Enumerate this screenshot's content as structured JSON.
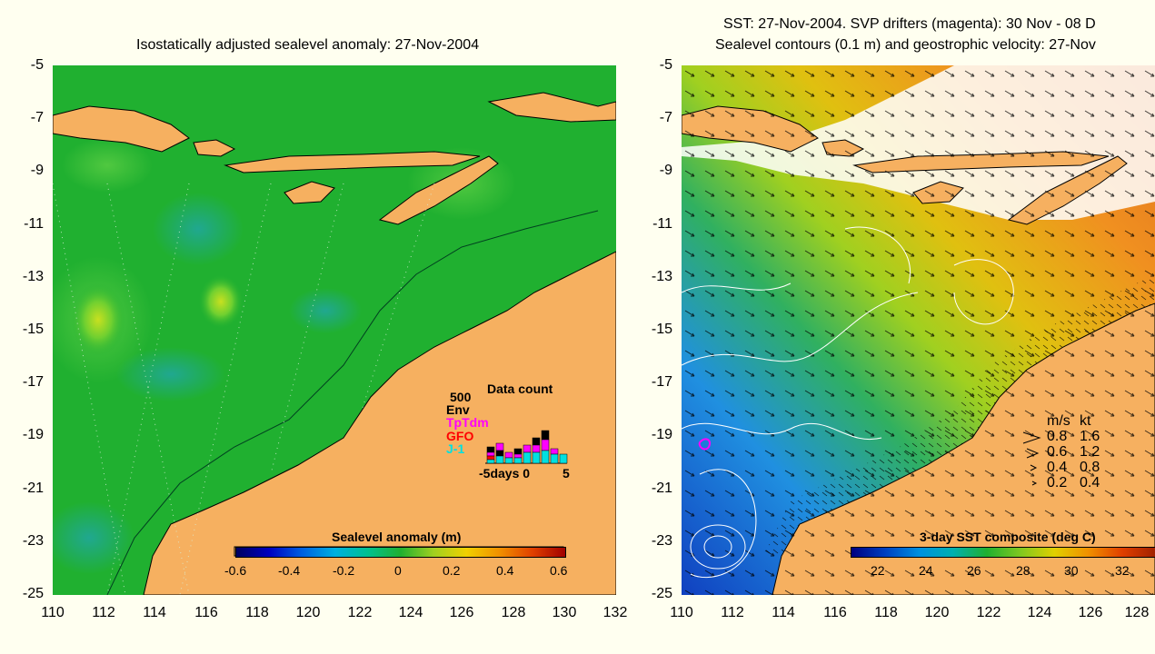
{
  "left_panel": {
    "title": "Isostatically adjusted sealevel anomaly: 27-Nov-2004",
    "y_ticks": [
      "-5",
      "-7",
      "-9",
      "-11",
      "-13",
      "-15",
      "-17",
      "-19",
      "-21",
      "-23",
      "-25"
    ],
    "x_ticks": [
      "110",
      "112",
      "114",
      "116",
      "118",
      "120",
      "122",
      "124",
      "126",
      "128",
      "130",
      "132"
    ],
    "colorbar": {
      "title": "Sealevel anomaly (m)",
      "labels": [
        "-0.6",
        "-0.4",
        "-0.2",
        "0",
        "0.2",
        "0.4",
        "0.6"
      ]
    },
    "data_count": {
      "title": "Data count",
      "max_label": "500",
      "legend": [
        {
          "label": "Env",
          "color": "#000000"
        },
        {
          "label": "TpTdm",
          "color": "#ff00ff"
        },
        {
          "label": "GFO",
          "color": "#ff0000"
        },
        {
          "label": "J-1",
          "color": "#00e0e0"
        }
      ],
      "x_axis_label": "-5days 0",
      "x_end_label": "5"
    }
  },
  "right_panel": {
    "title_line1": "SST: 27-Nov-2004. SVP drifters (magenta): 30 Nov - 08 D",
    "title_line2": "Sealevel contours (0.1 m) and geostrophic velocity: 27-Nov",
    "y_ticks": [
      "-5",
      "-7",
      "-9",
      "-11",
      "-13",
      "-15",
      "-17",
      "-19",
      "-21",
      "-23",
      "-25"
    ],
    "x_ticks": [
      "110",
      "112",
      "114",
      "116",
      "118",
      "120",
      "122",
      "124",
      "126",
      "128"
    ],
    "colorbar": {
      "title": "3-day SST composite (deg C)",
      "labels": [
        "22",
        "24",
        "26",
        "28",
        "30",
        "32"
      ]
    },
    "velocity_legend": {
      "header_ms": "m/s",
      "header_kt": "kt",
      "rows": [
        {
          "ms": "0.8",
          "kt": "1.6"
        },
        {
          "ms": "0.6",
          "kt": "1.2"
        },
        {
          "ms": "0.4",
          "kt": "0.8"
        },
        {
          "ms": "0.2",
          "kt": "0.4"
        }
      ]
    }
  },
  "colors": {
    "land": "#f6b060",
    "sea_green": "#20b030",
    "background": "#fffff0"
  }
}
